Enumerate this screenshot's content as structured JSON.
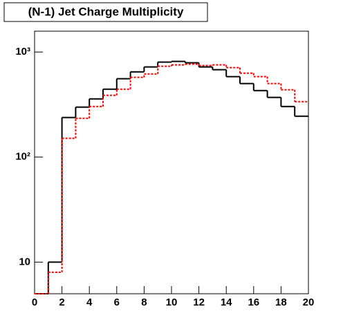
{
  "chart_data": {
    "type": "histogram",
    "title": "(N-1) Jet Charge Multiplicity",
    "bins": [
      0,
      1,
      2,
      3,
      4,
      5,
      6,
      7,
      8,
      9,
      10,
      11,
      12,
      13,
      14,
      15,
      16,
      17,
      18,
      19,
      20
    ],
    "series": [
      {
        "color": "#000000",
        "dashed": false,
        "values": [
          5,
          10,
          238,
          299,
          358,
          443,
          557,
          648,
          721,
          802,
          815,
          790,
          721,
          679,
          583,
          501,
          430,
          370,
          303,
          245
        ]
      },
      {
        "color": "#ff0000",
        "dashed": true,
        "values": [
          5,
          8,
          151,
          234,
          303,
          387,
          443,
          574,
          619,
          733,
          755,
          766,
          743,
          755,
          710,
          629,
          583,
          501,
          437,
          337
        ]
      }
    ],
    "xlim": [
      0,
      20
    ],
    "xticks": [
      0,
      2,
      4,
      6,
      8,
      10,
      12,
      14,
      16,
      18,
      20
    ],
    "ylim": [
      5,
      1580
    ],
    "log_y": true,
    "yticks": [
      10,
      {
        "value": 100,
        "label": "10²"
      },
      {
        "value": 1000,
        "label": "10³"
      }
    ]
  }
}
